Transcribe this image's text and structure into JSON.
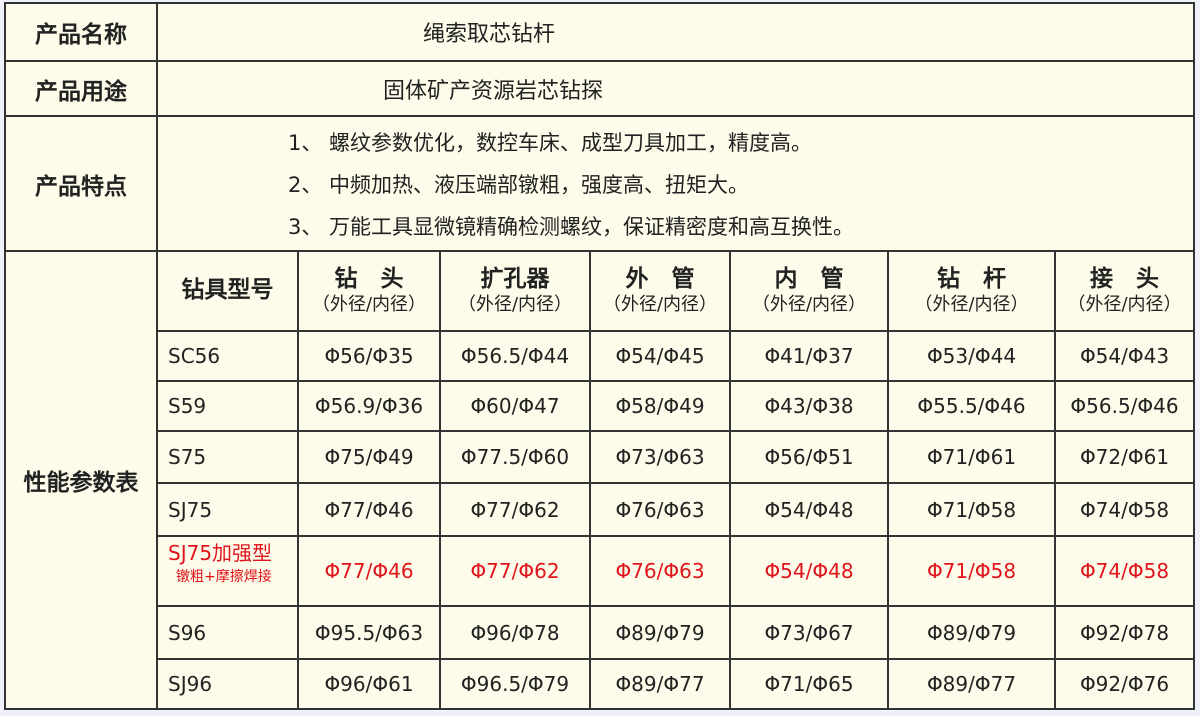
{
  "name": {
    "label": "产品名称",
    "value": "绳索取芯钻杆"
  },
  "usage": {
    "label": "产品用途",
    "value": "固体矿产资源岩芯钻探"
  },
  "features": {
    "label": "产品特点",
    "items": [
      "1、 螺纹参数优化，数控车床、成型刀具加工，精度高。",
      "2、 中频加热、液压端部镦粗，强度高、扭矩大。",
      "3、 万能工具显微镜精确检测螺纹，保证精密度和高互换性。"
    ]
  },
  "spec": {
    "label": "性能参数表",
    "headers": [
      {
        "title": "钻具型号",
        "sub": ""
      },
      {
        "title": "钻　头",
        "sub": "（外径/内径）"
      },
      {
        "title": "扩孔器",
        "sub": "（外径/内径）"
      },
      {
        "title": "外　管",
        "sub": "（外径/内径）"
      },
      {
        "title": "内　管",
        "sub": "（外径/内径）"
      },
      {
        "title": "钻　杆",
        "sub": "（外径/内径）"
      },
      {
        "title": "接　头",
        "sub": "（外径/内径）"
      }
    ],
    "rows": [
      {
        "model": "SC56",
        "note": "",
        "highlight": false,
        "cells": [
          "Φ56/Φ35",
          "Φ56.5/Φ44",
          "Φ54/Φ45",
          "Φ41/Φ37",
          "Φ53/Φ44",
          "Φ54/Φ43"
        ]
      },
      {
        "model": "S59",
        "note": "",
        "highlight": false,
        "cells": [
          "Φ56.9/Φ36",
          "Φ60/Φ47",
          "Φ58/Φ49",
          "Φ43/Φ38",
          "Φ55.5/Φ46",
          "Φ56.5/Φ46"
        ]
      },
      {
        "model": "S75",
        "note": "",
        "highlight": false,
        "cells": [
          "Φ75/Φ49",
          "Φ77.5/Φ60",
          "Φ73/Φ63",
          "Φ56/Φ51",
          "Φ71/Φ61",
          "Φ72/Φ61"
        ]
      },
      {
        "model": "SJ75",
        "note": "",
        "highlight": false,
        "cells": [
          "Φ77/Φ46",
          "Φ77/Φ62",
          "Φ76/Φ63",
          "Φ54/Φ48",
          "Φ71/Φ58",
          "Φ74/Φ58"
        ]
      },
      {
        "model": "SJ75加强型",
        "note": "镦粗+摩擦焊接",
        "highlight": true,
        "cells": [
          "Φ77/Φ46",
          "Φ77/Φ62",
          "Φ76/Φ63",
          "Φ54/Φ48",
          "Φ71/Φ58",
          "Φ74/Φ58"
        ]
      },
      {
        "model": "S96",
        "note": "",
        "highlight": false,
        "cells": [
          "Φ95.5/Φ63",
          "Φ96/Φ78",
          "Φ89/Φ79",
          "Φ73/Φ67",
          "Φ89/Φ79",
          "Φ92/Φ78"
        ]
      },
      {
        "model": "SJ96",
        "note": "",
        "highlight": false,
        "cells": [
          "Φ96/Φ61",
          "Φ96.5/Φ79",
          "Φ89/Φ77",
          "Φ71/Φ65",
          "Φ89/Φ77",
          "Φ92/Φ76"
        ]
      }
    ]
  },
  "colors": {
    "background": "#fdfbe9",
    "highlight": "#e0141c",
    "border": "#333333"
  }
}
